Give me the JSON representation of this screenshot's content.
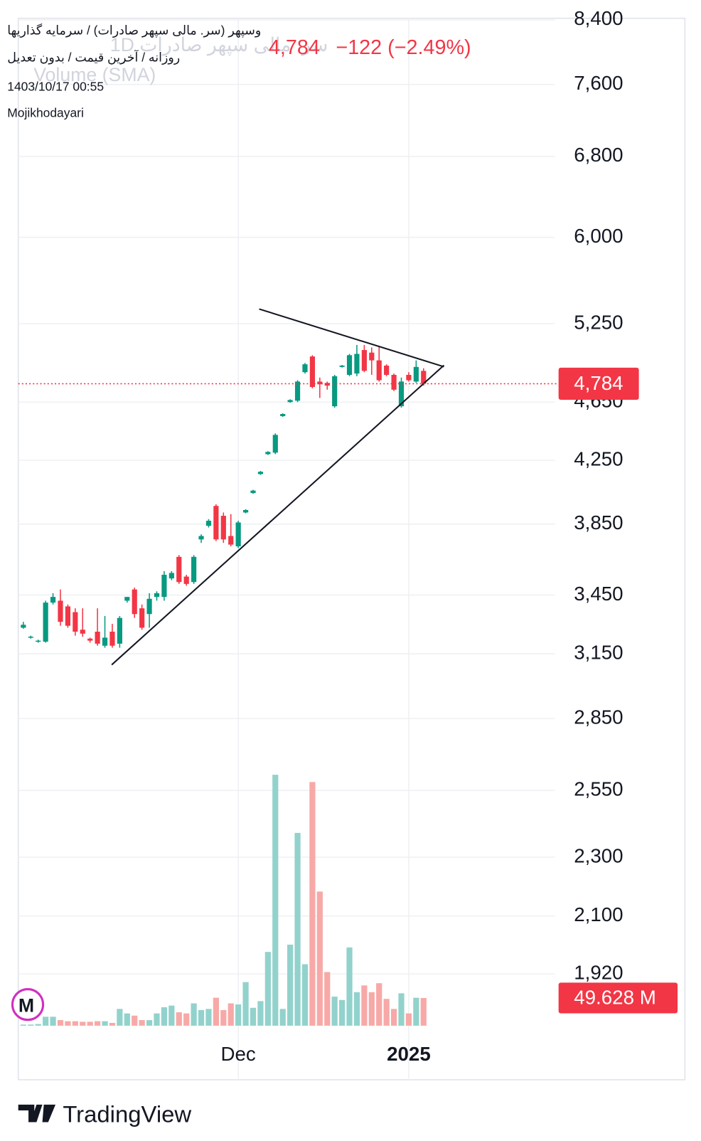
{
  "header": {
    "symbol_line": "وسپهر (سر. مالی سپهر صادرات) / سرمایه گذاریها",
    "settings_line": "روزانه / آخرین قیمت / بدون تعدیل",
    "timestamp": "1403/10/17 00:55",
    "author": "Mojikhodayari",
    "legend_symbol": "سر. مالی سپهر صادرات 1D",
    "legend_volume": "Volume (SMA)",
    "price": "4,784",
    "change": "−122 (−2.49%)",
    "avatar": "M",
    "logo": "TradingView"
  },
  "chart_data": {
    "type": "candlestick",
    "log_scale": true,
    "grid": true,
    "ylim": [
      1630,
      8420
    ],
    "yticks": [
      {
        "value": 8400,
        "label": "8,400"
      },
      {
        "value": 7600,
        "label": "7,600"
      },
      {
        "value": 6800,
        "label": "6,800"
      },
      {
        "value": 6000,
        "label": "6,000"
      },
      {
        "value": 5250,
        "label": "5,250"
      },
      {
        "value": 4650,
        "label": "4,650"
      },
      {
        "value": 4250,
        "label": "4,250"
      },
      {
        "value": 3850,
        "label": "3,850"
      },
      {
        "value": 3450,
        "label": "3,450"
      },
      {
        "value": 3150,
        "label": "3,150"
      },
      {
        "value": 2850,
        "label": "2,850"
      },
      {
        "value": 2550,
        "label": "2,550"
      },
      {
        "value": 2300,
        "label": "2,300"
      },
      {
        "value": 2100,
        "label": "2,100"
      },
      {
        "value": 1920,
        "label": "1,920"
      }
    ],
    "categories": [
      null,
      null,
      null,
      null,
      null,
      null,
      null,
      null,
      null,
      null,
      null,
      null,
      null,
      null,
      null,
      null,
      null,
      null,
      null,
      null,
      null,
      null,
      null,
      null,
      null,
      null,
      null,
      null,
      null,
      "Dec",
      null,
      null,
      null,
      null,
      null,
      null,
      null,
      null,
      null,
      null,
      null,
      null,
      null,
      null,
      null,
      null,
      null,
      null,
      null,
      null,
      null,
      null,
      "2025",
      null,
      null
    ],
    "open": [
      3280,
      3230,
      3210,
      3210,
      3410,
      3420,
      3390,
      3360,
      3270,
      3225,
      3260,
      3190,
      3260,
      3200,
      3420,
      3480,
      3380,
      3350,
      3440,
      3440,
      3540,
      3660,
      3550,
      3520,
      3760,
      3840,
      3960,
      3900,
      3780,
      3720,
      3920,
      4040,
      4160,
      4290,
      4300,
      4550,
      4650,
      4660,
      4870,
      4990,
      4800,
      4790,
      4620,
      4910,
      4850,
      4860,
      5040,
      5020,
      4960,
      4920,
      4850,
      4620,
      4850,
      4800,
      4880
    ],
    "high": [
      3310,
      3240,
      3220,
      3420,
      3460,
      3480,
      3400,
      3380,
      3380,
      3230,
      3380,
      3340,
      3300,
      3340,
      3440,
      3490,
      3400,
      3460,
      3470,
      3580,
      3580,
      3670,
      3560,
      3670,
      3790,
      3880,
      3970,
      3920,
      3910,
      3870,
      3940,
      4060,
      4180,
      4310,
      4430,
      4570,
      4670,
      4810,
      4940,
      5000,
      4830,
      4800,
      4850,
      4925,
      5010,
      5080,
      5080,
      5060,
      5070,
      4930,
      4860,
      4830,
      4870,
      4960,
      4900
    ],
    "low": [
      3275,
      3225,
      3205,
      3205,
      3400,
      3290,
      3280,
      3240,
      3235,
      3205,
      3190,
      3180,
      3180,
      3180,
      3410,
      3330,
      3270,
      3280,
      3420,
      3420,
      3530,
      3510,
      3500,
      3510,
      3740,
      3830,
      3750,
      3740,
      3720,
      3710,
      3915,
      4035,
      4155,
      4285,
      4290,
      4545,
      4645,
      4650,
      4860,
      4750,
      4680,
      4740,
      4610,
      4905,
      4840,
      4840,
      4870,
      4850,
      4800,
      4840,
      4730,
      4610,
      4800,
      4790,
      4770
    ],
    "close": [
      3295,
      3235,
      3215,
      3410,
      3440,
      3310,
      3290,
      3260,
      3250,
      3215,
      3200,
      3230,
      3190,
      3330,
      3440,
      3350,
      3280,
      3430,
      3460,
      3560,
      3570,
      3520,
      3510,
      3660,
      3780,
      3870,
      3760,
      3760,
      3730,
      3860,
      3935,
      4055,
      4175,
      4305,
      4420,
      4565,
      4665,
      4800,
      4930,
      4760,
      4780,
      4770,
      4840,
      4920,
      5000,
      5010,
      4880,
      4960,
      4810,
      4850,
      4740,
      4800,
      4810,
      4910,
      4784
    ],
    "up_color": "#089981",
    "down_color": "#f23645",
    "volume": {
      "axis": "y2",
      "values": [
        2,
        2,
        3,
        16,
        16,
        10,
        8,
        8,
        7,
        7,
        8,
        8,
        5,
        30,
        22,
        18,
        10,
        10,
        22,
        33,
        36,
        24,
        22,
        40,
        28,
        30,
        50,
        28,
        40,
        38,
        78,
        32,
        44,
        132,
        449,
        30,
        145,
        345,
        110,
        436,
        240,
        96,
        52,
        46,
        140,
        60,
        72,
        60,
        76,
        48,
        30,
        58,
        22,
        50,
        49.628
      ],
      "up_color": "#92d2cc",
      "down_color": "#f7a9a7"
    },
    "y2lim": [
      0,
      600
    ],
    "last_price_label": "4,784",
    "last_volume_label": "49.628 M"
  }
}
